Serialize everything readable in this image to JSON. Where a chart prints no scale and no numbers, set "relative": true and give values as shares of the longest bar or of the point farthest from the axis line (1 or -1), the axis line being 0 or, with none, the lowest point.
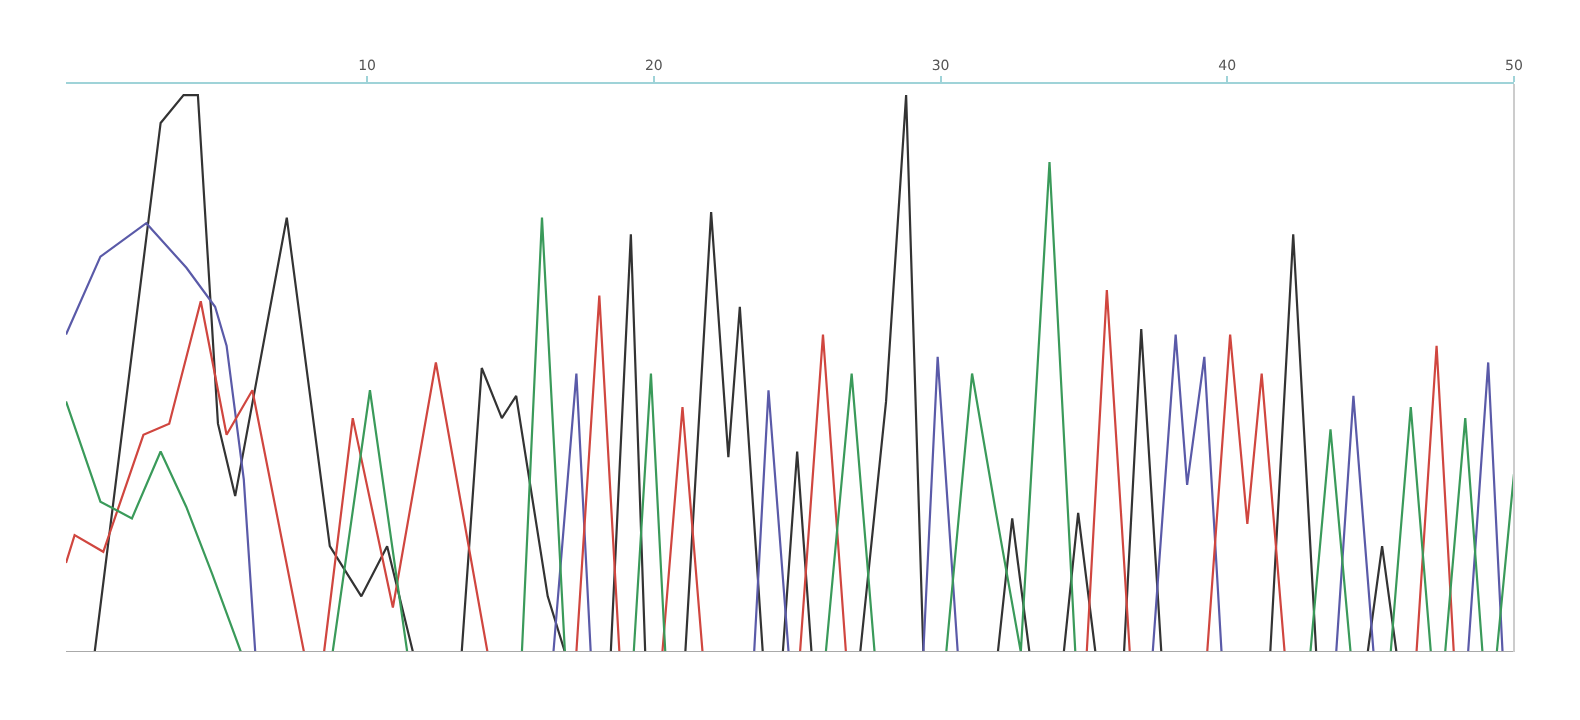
{
  "chart_data": {
    "type": "line",
    "relative": true,
    "xlim": [
      -0.5,
      50
    ],
    "xticks": [
      10,
      20,
      30,
      40,
      50
    ],
    "marker": "none",
    "line_style": "solid",
    "series": [
      {
        "color": "#333333",
        "x": [
          -0.5,
          0.5,
          2.8,
          3.6,
          4.1,
          4.8,
          5.4,
          7.2,
          8.7,
          9.8,
          10.7,
          11.6,
          13.3,
          14.0,
          14.7,
          15.2,
          16.3,
          16.9,
          18.5,
          19.2,
          19.7,
          21.1,
          22.0,
          22.6,
          23.0,
          23.8,
          24.5,
          25.0,
          25.5,
          27.2,
          28.1,
          28.8,
          29.4,
          32.0,
          32.5,
          33.1,
          34.3,
          34.8,
          35.4,
          36.4,
          37.0,
          37.7,
          41.5,
          42.3,
          43.1,
          44.9,
          45.4,
          45.9,
          50
        ],
        "values": [
          0,
          0,
          0.95,
          1.0,
          1.0,
          0.41,
          0.28,
          0.78,
          0.19,
          0.1,
          0.19,
          0,
          0,
          0.51,
          0.42,
          0.46,
          0.1,
          0,
          0,
          0.75,
          0,
          0,
          0.79,
          0.35,
          0.62,
          0,
          0,
          0.36,
          0,
          0,
          0.45,
          1.0,
          0,
          0,
          0.24,
          0,
          0,
          0.25,
          0,
          0,
          0.58,
          0,
          0,
          0.75,
          0,
          0,
          0.19,
          0,
          0
        ]
      },
      {
        "color": "#5a5aa8",
        "x": [
          -0.5,
          0.7,
          2.3,
          3.7,
          4.7,
          5.1,
          5.7,
          6.1,
          16.5,
          17.3,
          17.8,
          23.5,
          24.0,
          24.7,
          29.4,
          29.9,
          30.6,
          37.4,
          38.2,
          38.6,
          39.2,
          39.8,
          43.8,
          44.4,
          45.1,
          48.4,
          49.1,
          49.6,
          50
        ],
        "values": [
          0.57,
          0.71,
          0.77,
          0.69,
          0.62,
          0.55,
          0.31,
          0,
          0,
          0.5,
          0,
          0,
          0.47,
          0,
          0,
          0.53,
          0,
          0,
          0.57,
          0.3,
          0.53,
          0,
          0,
          0.46,
          0,
          0,
          0.52,
          0,
          0
        ]
      },
      {
        "color": "#d0463f",
        "x": [
          -0.5,
          -0.2,
          0.8,
          2.2,
          3.1,
          4.2,
          5.1,
          6.0,
          7.8,
          8.5,
          9.5,
          10.9,
          12.4,
          14.2,
          17.3,
          18.1,
          18.8,
          20.3,
          21.0,
          21.7,
          25.1,
          25.9,
          26.7,
          35.1,
          35.8,
          36.6,
          39.3,
          40.1,
          40.7,
          41.2,
          42.0,
          46.6,
          47.3,
          47.9,
          50
        ],
        "values": [
          0.16,
          0.21,
          0.18,
          0.39,
          0.41,
          0.63,
          0.39,
          0.47,
          0,
          0,
          0.42,
          0.08,
          0.52,
          0,
          0,
          0.64,
          0,
          0,
          0.44,
          0,
          0,
          0.57,
          0,
          0,
          0.65,
          0,
          0,
          0.57,
          0.23,
          0.5,
          0,
          0,
          0.55,
          0,
          0
        ]
      },
      {
        "color": "#3a9a5a",
        "x": [
          -0.5,
          0.7,
          1.8,
          2.8,
          3.7,
          4.6,
          5.6,
          8.8,
          10.1,
          11.4,
          15.4,
          16.1,
          16.9,
          19.3,
          19.9,
          20.4,
          26.0,
          26.9,
          27.7,
          30.2,
          31.1,
          31.9,
          32.8,
          33.8,
          34.7,
          42.9,
          43.6,
          44.3,
          45.7,
          46.4,
          47.1,
          47.6,
          48.3,
          48.9,
          49.4,
          50
        ],
        "values": [
          0.45,
          0.27,
          0.24,
          0.36,
          0.26,
          0.14,
          0,
          0,
          0.47,
          0,
          0,
          0.78,
          0,
          0,
          0.5,
          0,
          0,
          0.5,
          0,
          0,
          0.5,
          0.26,
          0,
          0.88,
          0,
          0,
          0.4,
          0,
          0,
          0.44,
          0,
          0,
          0.42,
          0,
          0,
          0.32
        ]
      }
    ]
  }
}
